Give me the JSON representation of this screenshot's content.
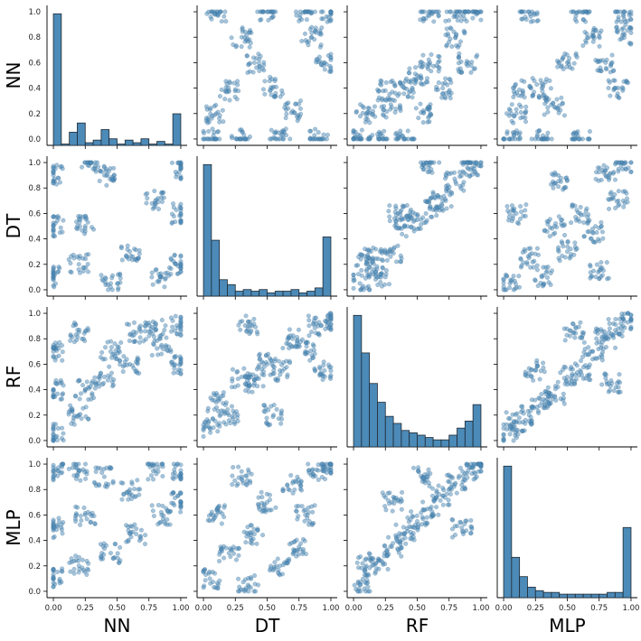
{
  "chart_data": {
    "type": "scatter",
    "variables": [
      "NN",
      "DT",
      "RF",
      "MLP"
    ],
    "ticks": [
      "0.0",
      "0.2",
      "0.4",
      "0.6",
      "0.8",
      "1.0"
    ],
    "x_ticks": [
      "0.00",
      "0.25",
      "0.50",
      "0.75",
      "1.00"
    ],
    "xlim": [
      -0.05,
      1.05
    ],
    "ylim": [
      -0.05,
      1.05
    ],
    "colors": {
      "marker": "#4c8ab8",
      "bar": "#4c8ab8",
      "axis": "#000000"
    },
    "histograms": {
      "NN": {
        "bins": [
          0.0,
          0.0625,
          0.125,
          0.1875,
          0.25,
          0.3125,
          0.375,
          0.4375,
          0.5,
          0.5625,
          0.625,
          0.6875,
          0.75,
          0.8125,
          0.875,
          0.9375,
          1.0
        ],
        "counts": [
          1.0,
          0.01,
          0.1,
          0.17,
          0.02,
          0.04,
          0.12,
          0.05,
          0.01,
          0.04,
          0.02,
          0.05,
          0.01,
          0.03,
          0.01,
          0.24
        ]
      },
      "DT": {
        "bins": [
          0.0,
          0.0625,
          0.125,
          0.1875,
          0.25,
          0.3125,
          0.375,
          0.4375,
          0.5,
          0.5625,
          0.625,
          0.6875,
          0.75,
          0.8125,
          0.875,
          0.9375,
          1.0
        ],
        "counts": [
          0.8,
          0.34,
          0.1,
          0.07,
          0.03,
          0.04,
          0.03,
          0.04,
          0.02,
          0.03,
          0.03,
          0.04,
          0.02,
          0.03,
          0.05,
          0.36
        ]
      },
      "RF": {
        "bins": [
          0.0,
          0.0625,
          0.125,
          0.1875,
          0.25,
          0.3125,
          0.375,
          0.4375,
          0.5,
          0.5625,
          0.625,
          0.6875,
          0.75,
          0.8125,
          0.875,
          0.9375,
          1.0
        ],
        "counts": [
          0.56,
          0.4,
          0.27,
          0.19,
          0.13,
          0.1,
          0.07,
          0.06,
          0.05,
          0.04,
          0.03,
          0.03,
          0.05,
          0.08,
          0.11,
          0.18
        ]
      },
      "MLP": {
        "bins": [
          0.0,
          0.0625,
          0.125,
          0.1875,
          0.25,
          0.3125,
          0.375,
          0.4375,
          0.5,
          0.5625,
          0.625,
          0.6875,
          0.75,
          0.8125,
          0.875,
          0.9375,
          1.0
        ],
        "counts": [
          0.75,
          0.23,
          0.12,
          0.06,
          0.04,
          0.03,
          0.03,
          0.02,
          0.02,
          0.02,
          0.02,
          0.02,
          0.02,
          0.03,
          0.03,
          0.4
        ]
      }
    },
    "scatter_pairs": [
      {
        "x": "DT",
        "y": "NN",
        "samples": [
          [
            0.05,
            0.0
          ],
          [
            0.3,
            0.0
          ],
          [
            0.6,
            0.0
          ],
          [
            0.9,
            0.0
          ],
          [
            0.1,
            1.0
          ],
          [
            0.5,
            1.0
          ],
          [
            0.8,
            1.0
          ],
          [
            1.0,
            1.0
          ],
          [
            0.1,
            0.2
          ],
          [
            0.2,
            0.38
          ],
          [
            0.4,
            0.6
          ],
          [
            0.55,
            0.41
          ],
          [
            0.7,
            0.22
          ],
          [
            0.85,
            0.8
          ],
          [
            0.95,
            0.6
          ],
          [
            0.3,
            0.8
          ]
        ]
      },
      {
        "x": "RF",
        "y": "NN",
        "samples": [
          [
            0.05,
            0.0
          ],
          [
            0.2,
            0.0
          ],
          [
            0.4,
            0.0
          ],
          [
            0.6,
            1.0
          ],
          [
            0.8,
            1.0
          ],
          [
            0.95,
            1.0
          ],
          [
            0.1,
            0.2
          ],
          [
            0.3,
            0.25
          ],
          [
            0.4,
            0.4
          ],
          [
            0.6,
            0.6
          ],
          [
            0.8,
            0.8
          ],
          [
            0.7,
            0.4
          ],
          [
            0.9,
            0.6
          ],
          [
            0.25,
            0.38
          ],
          [
            0.5,
            0.5
          ],
          [
            0.55,
            0.21
          ]
        ]
      },
      {
        "x": "MLP",
        "y": "NN",
        "samples": [
          [
            0.05,
            0.0
          ],
          [
            0.3,
            0.0
          ],
          [
            0.6,
            0.0
          ],
          [
            0.2,
            1.0
          ],
          [
            0.6,
            1.0
          ],
          [
            0.95,
            1.0
          ],
          [
            0.1,
            0.2
          ],
          [
            0.3,
            0.4
          ],
          [
            0.5,
            0.6
          ],
          [
            0.7,
            0.8
          ],
          [
            0.9,
            0.4
          ],
          [
            0.15,
            0.38
          ],
          [
            0.4,
            0.25
          ],
          [
            0.8,
            0.6
          ],
          [
            0.95,
            0.82
          ]
        ]
      },
      {
        "x": "NN",
        "y": "DT",
        "samples": [
          [
            0.0,
            0.1
          ],
          [
            0.0,
            0.5
          ],
          [
            0.0,
            0.9
          ],
          [
            1.0,
            0.2
          ],
          [
            1.0,
            0.6
          ],
          [
            1.0,
            0.95
          ],
          [
            0.2,
            0.2
          ],
          [
            0.25,
            0.5
          ],
          [
            0.4,
            0.9
          ],
          [
            0.6,
            0.3
          ],
          [
            0.8,
            0.7
          ],
          [
            0.45,
            0.05
          ],
          [
            0.85,
            0.1
          ],
          [
            0.3,
            1.0
          ]
        ]
      },
      {
        "x": "RF",
        "y": "DT",
        "samples": [
          [
            0.05,
            0.05
          ],
          [
            0.1,
            0.2
          ],
          [
            0.2,
            0.1
          ],
          [
            0.3,
            0.3
          ],
          [
            0.4,
            0.5
          ],
          [
            0.5,
            0.55
          ],
          [
            0.6,
            0.65
          ],
          [
            0.7,
            0.7
          ],
          [
            0.8,
            0.85
          ],
          [
            0.9,
            0.95
          ],
          [
            0.95,
            1.0
          ],
          [
            0.6,
            1.0
          ],
          [
            0.35,
            0.6
          ],
          [
            0.15,
            0.25
          ]
        ]
      },
      {
        "x": "MLP",
        "y": "DT",
        "samples": [
          [
            0.05,
            0.05
          ],
          [
            0.2,
            0.25
          ],
          [
            0.3,
            0.1
          ],
          [
            0.4,
            0.5
          ],
          [
            0.5,
            0.3
          ],
          [
            0.6,
            0.6
          ],
          [
            0.7,
            0.45
          ],
          [
            0.8,
            0.9
          ],
          [
            0.9,
            0.7
          ],
          [
            0.95,
            1.0
          ],
          [
            0.1,
            0.6
          ],
          [
            0.45,
            0.85
          ],
          [
            0.75,
            0.15
          ]
        ]
      },
      {
        "x": "NN",
        "y": "RF",
        "samples": [
          [
            0.0,
            0.05
          ],
          [
            0.0,
            0.4
          ],
          [
            0.0,
            0.7
          ],
          [
            0.2,
            0.2
          ],
          [
            0.25,
            0.4
          ],
          [
            0.4,
            0.5
          ],
          [
            0.45,
            0.7
          ],
          [
            0.6,
            0.6
          ],
          [
            0.65,
            0.85
          ],
          [
            0.8,
            0.9
          ],
          [
            0.85,
            0.75
          ],
          [
            1.0,
            0.6
          ],
          [
            1.0,
            0.9
          ],
          [
            0.2,
            0.85
          ]
        ]
      },
      {
        "x": "DT",
        "y": "RF",
        "samples": [
          [
            0.05,
            0.1
          ],
          [
            0.1,
            0.3
          ],
          [
            0.2,
            0.2
          ],
          [
            0.3,
            0.5
          ],
          [
            0.4,
            0.45
          ],
          [
            0.5,
            0.6
          ],
          [
            0.6,
            0.55
          ],
          [
            0.7,
            0.8
          ],
          [
            0.8,
            0.7
          ],
          [
            0.9,
            0.9
          ],
          [
            1.0,
            0.95
          ],
          [
            0.35,
            0.9
          ],
          [
            0.55,
            0.2
          ],
          [
            0.95,
            0.55
          ]
        ]
      },
      {
        "x": "MLP",
        "y": "RF",
        "samples": [
          [
            0.05,
            0.05
          ],
          [
            0.1,
            0.15
          ],
          [
            0.2,
            0.2
          ],
          [
            0.3,
            0.3
          ],
          [
            0.4,
            0.35
          ],
          [
            0.5,
            0.5
          ],
          [
            0.6,
            0.55
          ],
          [
            0.7,
            0.7
          ],
          [
            0.8,
            0.8
          ],
          [
            0.9,
            0.88
          ],
          [
            1.0,
            0.95
          ],
          [
            0.55,
            0.85
          ],
          [
            0.25,
            0.55
          ],
          [
            0.85,
            0.45
          ]
        ]
      },
      {
        "x": "NN",
        "y": "MLP",
        "samples": [
          [
            0.0,
            0.1
          ],
          [
            0.0,
            0.5
          ],
          [
            0.0,
            0.95
          ],
          [
            0.2,
            0.2
          ],
          [
            0.25,
            0.6
          ],
          [
            0.4,
            0.9
          ],
          [
            0.45,
            0.3
          ],
          [
            0.6,
            0.8
          ],
          [
            0.65,
            0.45
          ],
          [
            0.8,
            0.95
          ],
          [
            0.85,
            0.6
          ],
          [
            1.0,
            0.7
          ],
          [
            1.0,
            0.95
          ],
          [
            0.2,
            0.95
          ]
        ]
      },
      {
        "x": "DT",
        "y": "MLP",
        "samples": [
          [
            0.05,
            0.1
          ],
          [
            0.1,
            0.6
          ],
          [
            0.2,
            0.3
          ],
          [
            0.3,
            0.9
          ],
          [
            0.4,
            0.45
          ],
          [
            0.5,
            0.7
          ],
          [
            0.6,
            0.2
          ],
          [
            0.7,
            0.85
          ],
          [
            0.8,
            0.6
          ],
          [
            0.9,
            0.95
          ],
          [
            1.0,
            1.0
          ],
          [
            0.35,
            0.05
          ],
          [
            0.75,
            0.35
          ]
        ]
      },
      {
        "x": "RF",
        "y": "MLP",
        "samples": [
          [
            0.05,
            0.05
          ],
          [
            0.1,
            0.2
          ],
          [
            0.2,
            0.25
          ],
          [
            0.3,
            0.35
          ],
          [
            0.4,
            0.45
          ],
          [
            0.5,
            0.55
          ],
          [
            0.6,
            0.65
          ],
          [
            0.7,
            0.75
          ],
          [
            0.8,
            0.85
          ],
          [
            0.9,
            0.95
          ],
          [
            1.0,
            1.0
          ],
          [
            0.55,
            0.9
          ],
          [
            0.3,
            0.7
          ],
          [
            0.85,
            0.5
          ]
        ]
      }
    ]
  }
}
